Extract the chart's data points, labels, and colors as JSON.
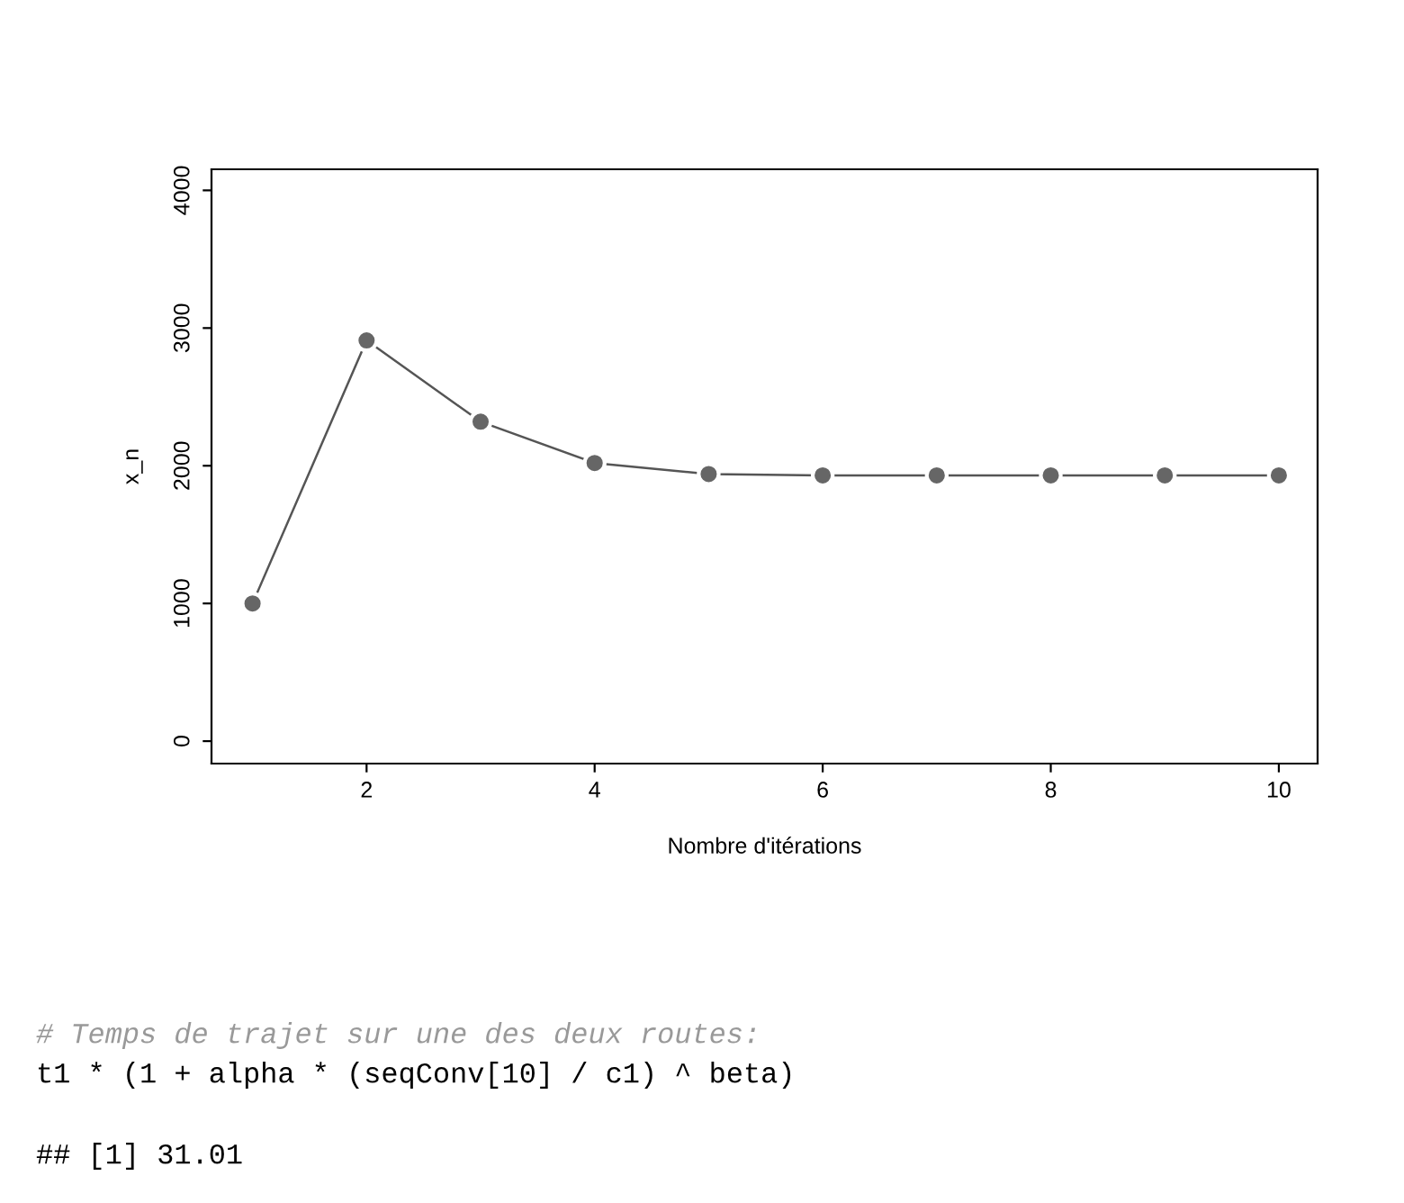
{
  "chart_data": {
    "type": "line",
    "xlabel": "Nombre d'itérations",
    "ylabel": "x_n",
    "x": [
      1,
      2,
      3,
      4,
      5,
      6,
      7,
      8,
      9,
      10
    ],
    "series": [
      {
        "color": "#666666",
        "values": [
          1000,
          2910,
          2320,
          2020,
          1940,
          1930,
          1930,
          1930,
          1930,
          1930
        ]
      }
    ],
    "xlim": [
      0.64,
      10.34
    ],
    "xticks": [
      2,
      4,
      6,
      8,
      10
    ],
    "ylim": [
      -163,
      4153
    ],
    "yticks": [
      0,
      1000,
      2000,
      3000,
      4000
    ],
    "marker": "circle",
    "line_style": "solid",
    "grid": false,
    "annotations": [
      "# Temps de trajet sur une des deux routes:",
      "t1 * (1 + alpha * (seqConv[10] / c1) ^ beta)",
      "## [1] 31.01"
    ]
  }
}
